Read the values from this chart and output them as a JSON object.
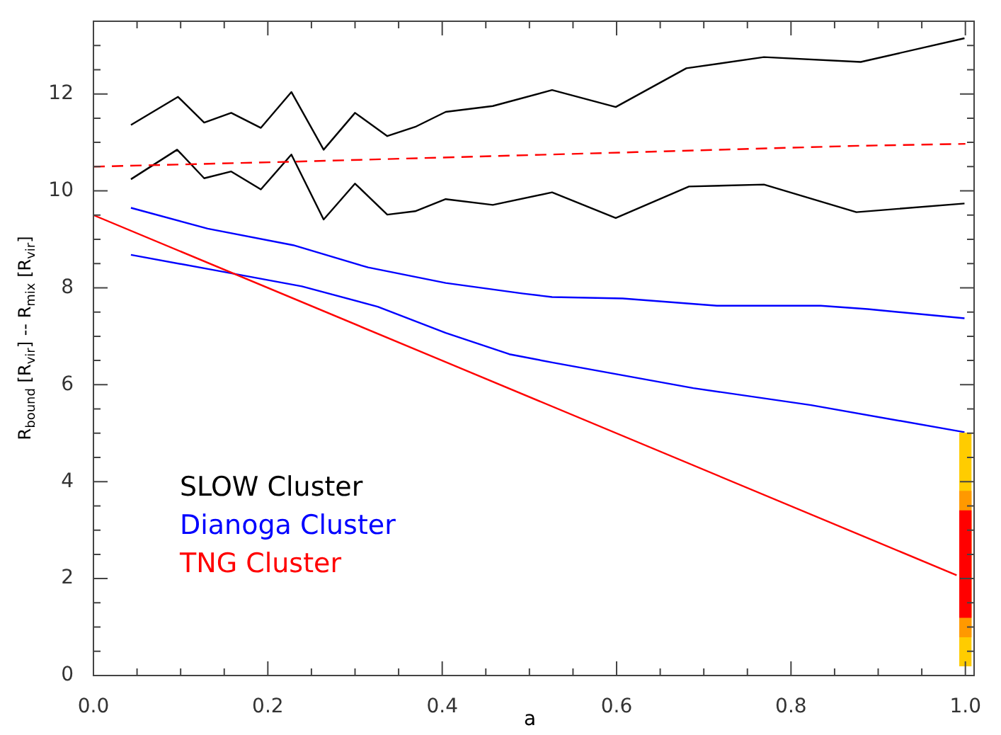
{
  "chart_data": {
    "type": "line",
    "xlabel": "a",
    "ylabel": "R$_{bound}$ [R$_{vir}$] -- R$_{mix}$ [R$_{vir}$]",
    "xlim": [
      0,
      1.01
    ],
    "ylim": [
      0,
      13.5
    ],
    "xticks": [
      {
        "value": 0,
        "label": "0.0"
      },
      {
        "value": 0.05,
        "label": null
      },
      {
        "value": 0.1,
        "label": null
      },
      {
        "value": 0.15,
        "label": null
      },
      {
        "value": 0.2,
        "label": "0.2"
      },
      {
        "value": 0.25,
        "label": null
      },
      {
        "value": 0.3,
        "label": null
      },
      {
        "value": 0.35,
        "label": null
      },
      {
        "value": 0.4,
        "label": "0.4"
      },
      {
        "value": 0.45,
        "label": null
      },
      {
        "value": 0.5,
        "label": null
      },
      {
        "value": 0.55,
        "label": null
      },
      {
        "value": 0.6,
        "label": "0.6"
      },
      {
        "value": 0.65,
        "label": null
      },
      {
        "value": 0.7,
        "label": null
      },
      {
        "value": 0.75,
        "label": null
      },
      {
        "value": 0.8,
        "label": "0.8"
      },
      {
        "value": 0.85,
        "label": null
      },
      {
        "value": 0.9,
        "label": null
      },
      {
        "value": 0.95,
        "label": null
      },
      {
        "value": 1,
        "label": "1.0"
      }
    ],
    "yticks": [
      0,
      {
        "value": 0.5,
        "label": null
      },
      {
        "value": 1,
        "label": null
      },
      {
        "value": 1.5,
        "label": null
      },
      2,
      {
        "value": 2.5,
        "label": null
      },
      {
        "value": 3,
        "label": null
      },
      {
        "value": 3.5,
        "label": null
      },
      4,
      {
        "value": 4.5,
        "label": null
      },
      {
        "value": 5,
        "label": null
      },
      {
        "value": 5.5,
        "label": null
      },
      6,
      {
        "value": 6.5,
        "label": null
      },
      {
        "value": 7,
        "label": null
      },
      {
        "value": 7.5,
        "label": null
      },
      8,
      {
        "value": 8.5,
        "label": null
      },
      {
        "value": 9,
        "label": null
      },
      {
        "value": 9.5,
        "label": null
      },
      10,
      {
        "value": 10.5,
        "label": null
      },
      {
        "value": 11,
        "label": null
      },
      {
        "value": 11.5,
        "label": null
      },
      12,
      {
        "value": 12.5,
        "label": null
      },
      {
        "value": 13,
        "label": null
      }
    ],
    "grid": false,
    "legend": "bottom left",
    "marker": "none",
    "series": [
      {
        "name": "SLOW Cluster",
        "color": "#000000",
        "x": [
          0.043,
          0.097,
          0.127,
          0.158,
          0.192,
          0.227,
          0.264,
          0.3,
          0.337,
          0.369,
          0.404,
          0.458,
          0.526,
          0.599,
          0.68,
          0.769,
          0.88,
          0.999
        ],
        "values": [
          11.36,
          11.94,
          11.41,
          11.61,
          11.3,
          12.04,
          10.85,
          11.61,
          11.13,
          11.32,
          11.63,
          11.75,
          12.08,
          11.73,
          12.53,
          12.76,
          12.66,
          13.15
        ]
      },
      {
        "color": "#000000",
        "x": [
          0.043,
          0.096,
          0.127,
          0.158,
          0.192,
          0.227,
          0.264,
          0.3,
          0.337,
          0.369,
          0.404,
          0.458,
          0.526,
          0.599,
          0.683,
          0.769,
          0.875,
          0.999
        ],
        "values": [
          10.24,
          10.85,
          10.26,
          10.4,
          10.03,
          10.75,
          9.41,
          10.15,
          9.51,
          9.58,
          9.83,
          9.71,
          9.97,
          9.44,
          10.09,
          10.13,
          9.56,
          9.74
        ]
      },
      {
        "name": "Dianoga Cluster",
        "color": "#0000ff",
        "x": [
          0.043,
          0.131,
          0.229,
          0.315,
          0.404,
          0.493,
          0.526,
          0.607,
          0.715,
          0.834,
          0.888,
          0.999
        ],
        "values": [
          9.65,
          9.22,
          8.88,
          8.42,
          8.1,
          7.88,
          7.81,
          7.78,
          7.63,
          7.63,
          7.56,
          7.37
        ]
      },
      {
        "color": "#0000ff",
        "x": [
          0.043,
          0.137,
          0.239,
          0.326,
          0.404,
          0.477,
          0.526,
          0.688,
          0.823,
          0.999
        ],
        "values": [
          8.68,
          8.37,
          8.03,
          7.61,
          7.07,
          6.63,
          6.46,
          5.93,
          5.58,
          5.02
        ]
      },
      {
        "name": "TNG Cluster",
        "color": "#ff0000",
        "x": [
          0,
          0.99
        ],
        "values": [
          9.5,
          2.07
        ]
      },
      {
        "color": "#ff0000",
        "line_style": "dashed",
        "x": [
          0,
          0.245,
          0.623,
          0.877,
          1.0
        ],
        "values": [
          10.5,
          10.61,
          10.8,
          10.93,
          10.97
        ]
      },
      {
        "type": "bar",
        "color": "#ffcc00",
        "x": [
          1.0
        ],
        "base": [
          0.2
        ],
        "values": [
          4.8
        ]
      },
      {
        "type": "bar",
        "color": "#ff9900",
        "x": [
          1.0
        ],
        "base": [
          0.8
        ],
        "values": [
          3.0
        ]
      },
      {
        "type": "bar",
        "color": "#ff0000",
        "x": [
          1.0
        ],
        "base": [
          1.2
        ],
        "values": [
          2.2
        ]
      }
    ]
  }
}
